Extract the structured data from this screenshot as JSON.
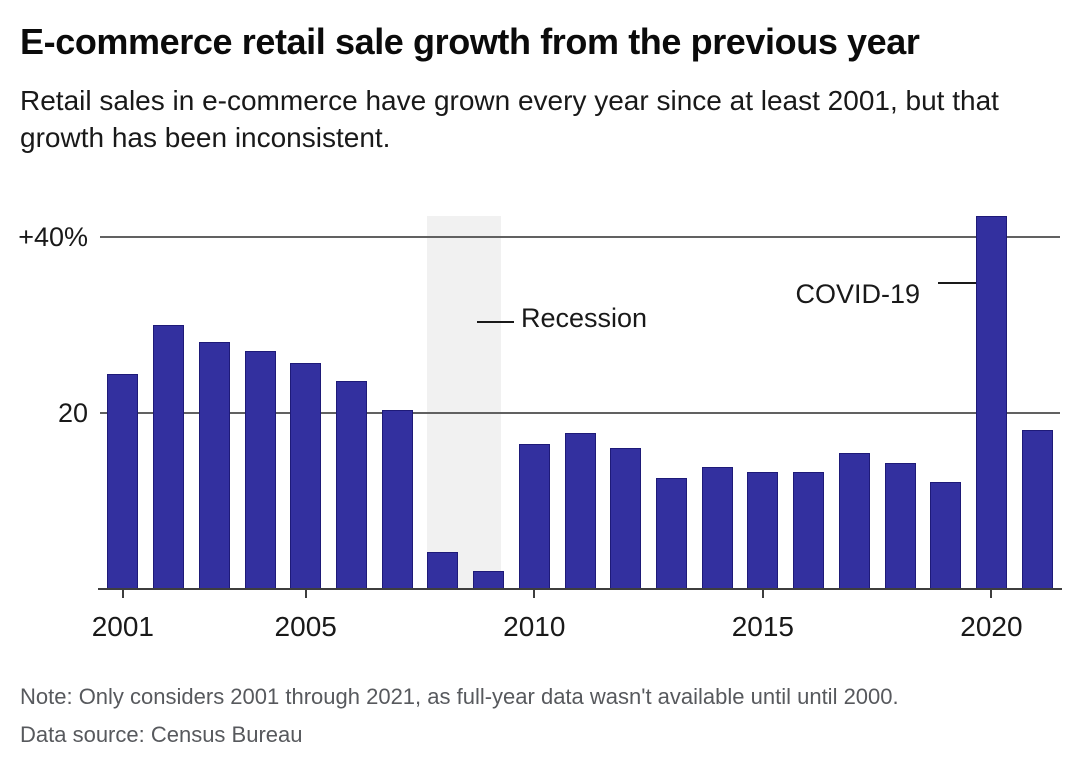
{
  "header": {
    "title": "E-commerce retail sale growth from the previous year",
    "subtitle": "Retail sales in e-commerce have grown every year since at least 2001, but that growth has been inconsistent."
  },
  "chart_data": {
    "type": "bar",
    "title": "E-commerce retail sale growth from the previous year",
    "subtitle": "Retail sales in e-commerce have grown every year since at least 2001, but that growth has been inconsistent.",
    "xlabel": "",
    "ylabel": "",
    "unit": "%",
    "categories": [
      "2001",
      "2002",
      "2003",
      "2004",
      "2005",
      "2006",
      "2007",
      "2008",
      "2009",
      "2010",
      "2011",
      "2012",
      "2013",
      "2014",
      "2015",
      "2016",
      "2017",
      "2018",
      "2019",
      "2020",
      "2021"
    ],
    "values": [
      24.4,
      30.0,
      28.0,
      27.0,
      25.7,
      23.6,
      20.3,
      4.2,
      2.0,
      16.5,
      17.7,
      16.0,
      12.6,
      13.9,
      13.3,
      13.3,
      15.4,
      14.3,
      12.2,
      42.3,
      18.1
    ],
    "ylim": [
      0,
      42.4
    ],
    "grid": "horizontal",
    "legend": "none",
    "y_gridlines": [
      {
        "value": 40,
        "label": "+40%"
      },
      {
        "value": 20,
        "label": "20"
      }
    ],
    "x_tick_labels": [
      "2001",
      "2005",
      "2010",
      "2015",
      "2020"
    ],
    "bar_color": "#33309f",
    "bar_border_color": "#1e1a78",
    "recession_band": {
      "from_year": "2008",
      "to_year": "2009",
      "color": "#f1f1f1"
    },
    "annotations": [
      {
        "label": "Recession",
        "target": "recession-band"
      },
      {
        "label": "COVID-19",
        "target": "bar-2020"
      }
    ]
  },
  "footer": {
    "note": "Note: Only considers 2001 through 2021, as full-year data wasn't available until until 2000.",
    "source": "Data source: Census Bureau"
  }
}
